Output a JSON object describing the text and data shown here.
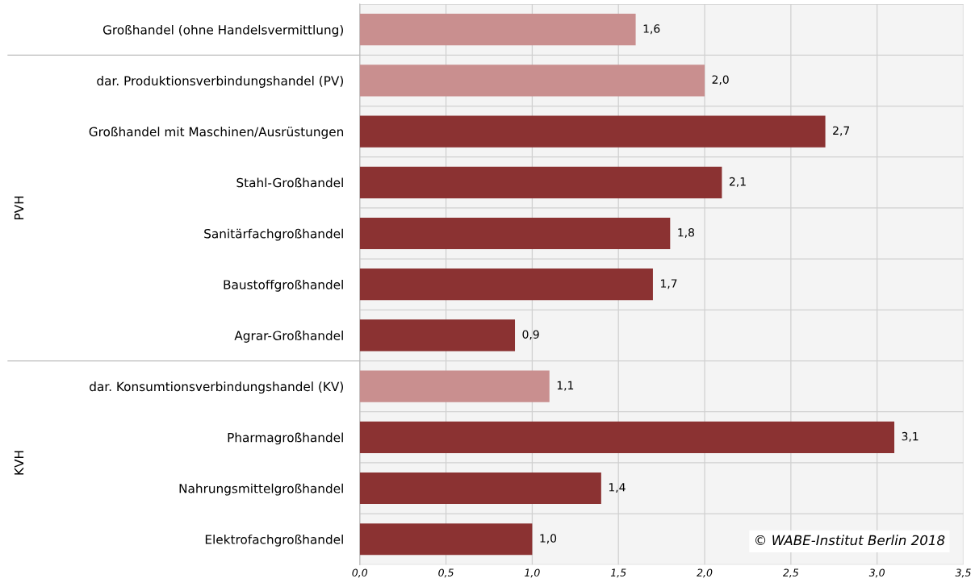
{
  "chart_data": {
    "type": "bar",
    "orientation": "horizontal",
    "categories": [
      "Großhandel (ohne Handelsvermittlung)",
      "dar. Produktionsverbindungshandel (PV)",
      "Großhandel mit Maschinen/Ausrüstungen",
      "Stahl-Großhandel",
      "Sanitärfachgroßhandel",
      "Baustoffgroßhandel",
      "Agrar-Großhandel",
      "dar. Konsumtionsverbindungshandel (KV)",
      "Pharmagroßhandel",
      "Nahrungsmittelgroßhandel",
      "Elektrofachgroßhandel"
    ],
    "values": [
      1.6,
      2.0,
      2.7,
      2.1,
      1.8,
      1.7,
      0.9,
      1.1,
      3.1,
      1.4,
      1.0
    ],
    "value_labels": [
      "1,6",
      "2,0",
      "2,7",
      "2,1",
      "1,8",
      "1,7",
      "0,9",
      "1,1",
      "3,1",
      "1,4",
      "1,0"
    ],
    "colors": [
      "#c98f8f",
      "#c98f8f",
      "#8b3232",
      "#8b3232",
      "#8b3232",
      "#8b3232",
      "#8b3232",
      "#c98f8f",
      "#8b3232",
      "#8b3232",
      "#8b3232"
    ],
    "xlim": [
      0,
      3.5
    ],
    "xticks": [
      {
        "value": 0,
        "label": "0,0"
      },
      {
        "value": 0.5,
        "label": "0,5"
      },
      {
        "value": 1.0,
        "label": "1,0"
      },
      {
        "value": 1.5,
        "label": "1,5"
      },
      {
        "value": 2.0,
        "label": "2,0"
      },
      {
        "value": 2.5,
        "label": "2,5"
      },
      {
        "value": 3.0,
        "label": "3,0"
      },
      {
        "value": 3.5,
        "label": "3,5"
      }
    ],
    "grid": true,
    "annotations": [
      "PVH",
      "KVH",
      "© WABE-Institut Berlin 2018"
    ]
  }
}
